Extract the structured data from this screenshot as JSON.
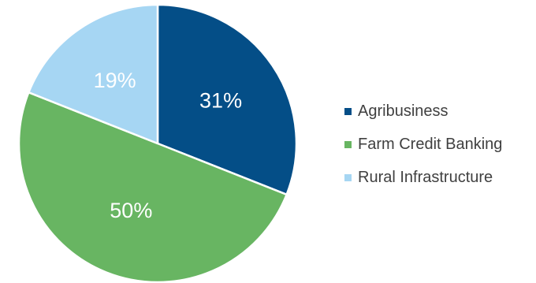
{
  "chart_data": {
    "type": "pie",
    "categories": [
      "Agribusiness",
      "Farm Credit Banking",
      "Rural Infrastructure"
    ],
    "values": [
      31,
      50,
      19
    ],
    "value_labels": [
      "31%",
      "50%",
      "19%"
    ],
    "colors": [
      "#044e87",
      "#68b562",
      "#a6d6f3"
    ],
    "start_angle": "12 o'clock",
    "direction": "clockwise",
    "legend_position": "right"
  }
}
